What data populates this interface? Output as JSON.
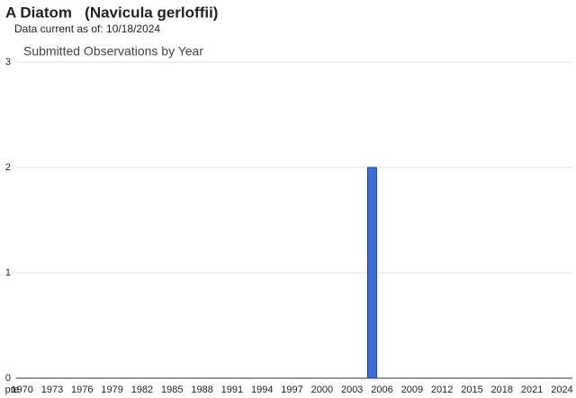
{
  "page_title": "A Diatom   (Navicula gerloffii)",
  "data_note": "Data current as of: 10/18/2024",
  "chart_data": {
    "type": "bar",
    "title": "Submitted Observations by Year",
    "categories": [
      "pre",
      "1970",
      null,
      null,
      "1973",
      null,
      null,
      "1976",
      null,
      null,
      "1979",
      null,
      null,
      "1982",
      null,
      null,
      "1985",
      null,
      null,
      "1988",
      null,
      null,
      "1991",
      null,
      null,
      "1994",
      null,
      null,
      "1997",
      null,
      null,
      "2000",
      null,
      null,
      "2003",
      null,
      null,
      "2006",
      null,
      null,
      "2009",
      null,
      null,
      "2012",
      null,
      null,
      "2015",
      null,
      null,
      "2018",
      null,
      null,
      "2021",
      null,
      null,
      "2024"
    ],
    "values": [
      0,
      0,
      0,
      0,
      0,
      0,
      0,
      0,
      0,
      0,
      0,
      0,
      0,
      0,
      0,
      0,
      0,
      0,
      0,
      0,
      0,
      0,
      0,
      0,
      0,
      0,
      0,
      0,
      0,
      0,
      0,
      0,
      0,
      0,
      0,
      0,
      2,
      0,
      0,
      0,
      0,
      0,
      0,
      0,
      0,
      0,
      0,
      0,
      0,
      0,
      0,
      0,
      0,
      0,
      0,
      0
    ],
    "color": "#3c6fdc",
    "ylim": [
      0,
      3
    ],
    "yticks": [
      0,
      1,
      2,
      3
    ],
    "grid": true
  }
}
